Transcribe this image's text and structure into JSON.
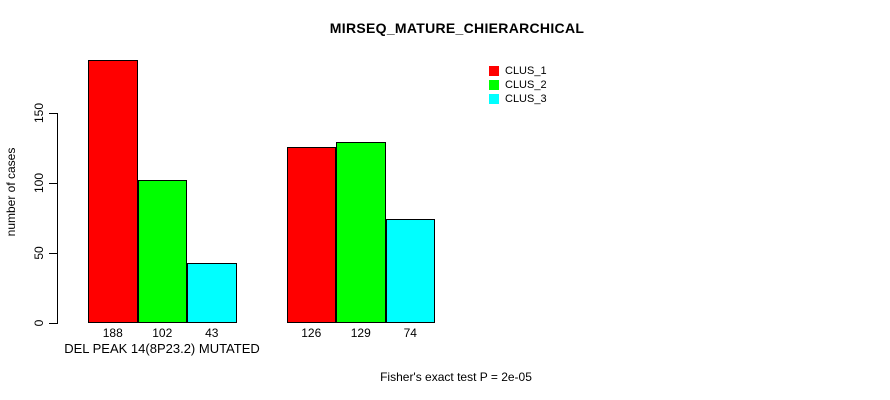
{
  "chart_data": {
    "type": "bar",
    "title": "MIRSEQ_MATURE_CHIERARCHICAL",
    "ylabel": "number of cases",
    "xlabel": "",
    "categories": [
      "DEL PEAK 14(8P23.2) MUTATED",
      ""
    ],
    "series": [
      {
        "name": "CLUS_1",
        "color": "#ff0000",
        "values": [
          188,
          126
        ]
      },
      {
        "name": "CLUS_2",
        "color": "#00ff00",
        "values": [
          102,
          129
        ]
      },
      {
        "name": "CLUS_3",
        "color": "#00ffff",
        "values": [
          43,
          74
        ]
      }
    ],
    "yticks": [
      0,
      50,
      100,
      150
    ],
    "ylim": [
      0,
      188
    ],
    "grid": false,
    "bar_value_labels": true,
    "legend": {
      "position": "top-right",
      "entries": [
        "CLUS_1",
        "CLUS_2",
        "CLUS_3"
      ]
    },
    "annotation": "Fisher's exact test P = 2e-05"
  }
}
